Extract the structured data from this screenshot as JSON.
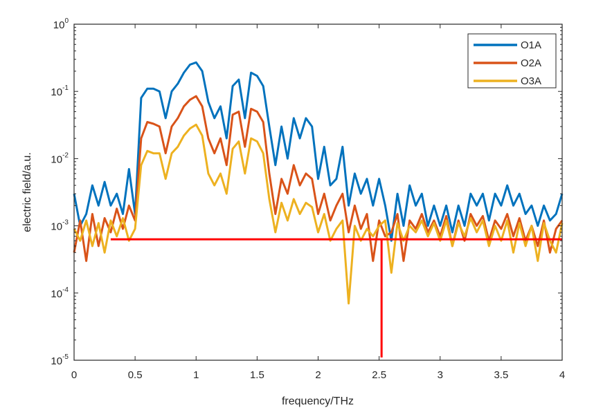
{
  "chart_data": {
    "type": "line",
    "title": "",
    "xlabel": "frequency/THz",
    "ylabel": "electric field/a.u.",
    "xlim": [
      0,
      4
    ],
    "ylim": [
      1e-05,
      1
    ],
    "yscale": "log",
    "xticks": [
      "0",
      "0.5",
      "1",
      "1.5",
      "2",
      "2.5",
      "3",
      "3.5",
      "4"
    ],
    "yticks": [
      {
        "base": "10",
        "exp": "0"
      },
      {
        "base": "10",
        "exp": "-1"
      },
      {
        "base": "10",
        "exp": "-2"
      },
      {
        "base": "10",
        "exp": "-3"
      },
      {
        "base": "10",
        "exp": "-4"
      },
      {
        "base": "10",
        "exp": "-5"
      }
    ],
    "grid": false,
    "legend_position": "top-right",
    "x_step": 0.05,
    "series": [
      {
        "name": "O1A",
        "color": "#0072BD",
        "values": [
          0.003,
          0.001,
          0.0015,
          0.004,
          0.002,
          0.0045,
          0.002,
          0.003,
          0.0015,
          0.007,
          0.0015,
          0.08,
          0.11,
          0.11,
          0.1,
          0.04,
          0.1,
          0.13,
          0.19,
          0.25,
          0.27,
          0.2,
          0.07,
          0.04,
          0.06,
          0.02,
          0.12,
          0.15,
          0.04,
          0.19,
          0.17,
          0.12,
          0.03,
          0.008,
          0.03,
          0.01,
          0.04,
          0.02,
          0.04,
          0.03,
          0.005,
          0.015,
          0.004,
          0.005,
          0.015,
          0.002,
          0.006,
          0.003,
          0.005,
          0.002,
          0.005,
          0.002,
          0.0006,
          0.003,
          0.001,
          0.004,
          0.002,
          0.003,
          0.001,
          0.002,
          0.001,
          0.002,
          0.0008,
          0.002,
          0.001,
          0.003,
          0.002,
          0.003,
          0.0012,
          0.003,
          0.002,
          0.004,
          0.002,
          0.003,
          0.0015,
          0.002,
          0.001,
          0.002,
          0.0012,
          0.0015,
          0.003
        ]
      },
      {
        "name": "O2A",
        "color": "#D95319",
        "values": [
          0.0004,
          0.0012,
          0.0003,
          0.0015,
          0.0005,
          0.0013,
          0.0008,
          0.0018,
          0.0009,
          0.002,
          0.0012,
          0.02,
          0.035,
          0.033,
          0.03,
          0.012,
          0.03,
          0.04,
          0.06,
          0.075,
          0.085,
          0.06,
          0.02,
          0.012,
          0.02,
          0.008,
          0.045,
          0.05,
          0.015,
          0.055,
          0.05,
          0.035,
          0.006,
          0.0015,
          0.005,
          0.003,
          0.008,
          0.004,
          0.006,
          0.005,
          0.0015,
          0.003,
          0.0012,
          0.002,
          0.003,
          0.0008,
          0.002,
          0.0009,
          0.0015,
          0.0003,
          0.0012,
          0.0007,
          0.0008,
          0.0015,
          0.0003,
          0.0012,
          0.0009,
          0.0015,
          0.0008,
          0.0012,
          0.0007,
          0.0014,
          0.0005,
          0.0012,
          0.0006,
          0.0015,
          0.001,
          0.0014,
          0.0006,
          0.0012,
          0.0009,
          0.0015,
          0.0007,
          0.0013,
          0.0006,
          0.001,
          0.0005,
          0.0012,
          0.0004,
          0.0009,
          0.0012
        ]
      },
      {
        "name": "O3A",
        "color": "#EDB120",
        "values": [
          0.0009,
          0.0006,
          0.0012,
          0.0005,
          0.0011,
          0.0004,
          0.0012,
          0.0007,
          0.0013,
          0.0006,
          0.0009,
          0.008,
          0.013,
          0.012,
          0.012,
          0.005,
          0.012,
          0.015,
          0.022,
          0.028,
          0.032,
          0.022,
          0.006,
          0.004,
          0.006,
          0.003,
          0.014,
          0.018,
          0.006,
          0.02,
          0.018,
          0.012,
          0.0025,
          0.0008,
          0.0022,
          0.0012,
          0.0025,
          0.0015,
          0.0022,
          0.0019,
          0.0008,
          0.0015,
          0.0006,
          0.0009,
          0.0012,
          7e-05,
          0.001,
          0.0006,
          0.0009,
          0.0007,
          0.001,
          0.0012,
          0.0002,
          0.0011,
          0.0006,
          0.001,
          0.0008,
          0.0012,
          0.0007,
          0.0011,
          0.0006,
          0.0012,
          0.0005,
          0.0011,
          0.0007,
          0.0013,
          0.0008,
          0.0012,
          0.0005,
          0.001,
          0.0006,
          0.0012,
          0.0004,
          0.0011,
          0.0005,
          0.001,
          0.0003,
          0.0011,
          0.0006,
          0.0004,
          0.0011
        ]
      }
    ],
    "annotations": [
      {
        "type": "hline",
        "color": "#FF0000",
        "y": 0.00063,
        "x_from": 0.3,
        "x_to": 4
      },
      {
        "type": "vline",
        "color": "#FF0000",
        "x": 2.52,
        "y_from": 1e-05,
        "y_to": 0.00063
      }
    ]
  }
}
